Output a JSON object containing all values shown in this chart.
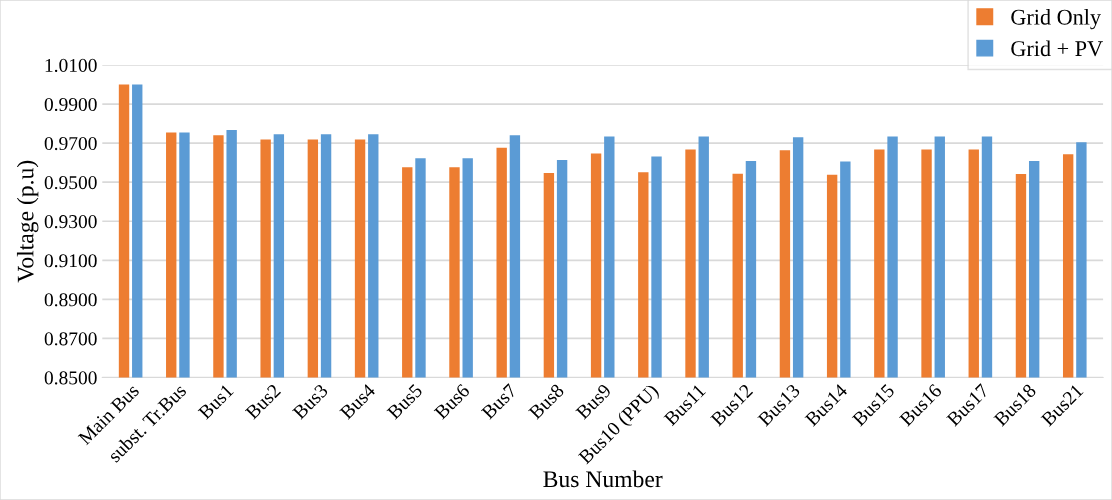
{
  "chart_data": {
    "type": "bar",
    "xlabel": "Bus Number",
    "ylabel": "Voltage (p.u)",
    "categories": [
      "Main Bus",
      "subst. Tr.Bus",
      "Bus1",
      "Bus2",
      "Bus3",
      "Bus4",
      "Bus5",
      "Bus6",
      "Bus7",
      "Bus8",
      "Bus9",
      "Bus10 (PPU)",
      "Bus11",
      "Bus12",
      "Bus13",
      "Bus14",
      "Bus15",
      "Bus16",
      "Bus17",
      "Bus18",
      "Bus21"
    ],
    "series": [
      {
        "name": "Grid Only",
        "color": "#ed7d31",
        "values": [
          1.0,
          0.9755,
          0.974,
          0.9718,
          0.9718,
          0.9718,
          0.9576,
          0.9576,
          0.9676,
          0.9547,
          0.9647,
          0.9551,
          0.9668,
          0.9543,
          0.9664,
          0.9538,
          0.9668,
          0.9668,
          0.9668,
          0.9542,
          0.9643
        ]
      },
      {
        "name": "Grid + PV",
        "color": "#5b9bd5",
        "values": [
          1.0,
          0.9755,
          0.9767,
          0.9745,
          0.9745,
          0.9745,
          0.9622,
          0.9622,
          0.974,
          0.9613,
          0.9734,
          0.9632,
          0.9734,
          0.9608,
          0.973,
          0.9606,
          0.9734,
          0.9734,
          0.9734,
          0.9608,
          0.9704
        ]
      }
    ],
    "ylim": [
      0.85,
      1.01
    ],
    "yticks": [
      {
        "value": 0.85,
        "label": "0.8500"
      },
      {
        "value": 0.87,
        "label": "0.8700"
      },
      {
        "value": 0.89,
        "label": "0.8900"
      },
      {
        "value": 0.91,
        "label": "0.9100"
      },
      {
        "value": 0.93,
        "label": "0.9300"
      },
      {
        "value": 0.95,
        "label": "0.9500"
      },
      {
        "value": 0.97,
        "label": "0.9700"
      },
      {
        "value": 0.99,
        "label": "0.9900"
      },
      {
        "value": 1.01,
        "label": "1.0100"
      }
    ],
    "grid": "y",
    "legend": "top right"
  }
}
